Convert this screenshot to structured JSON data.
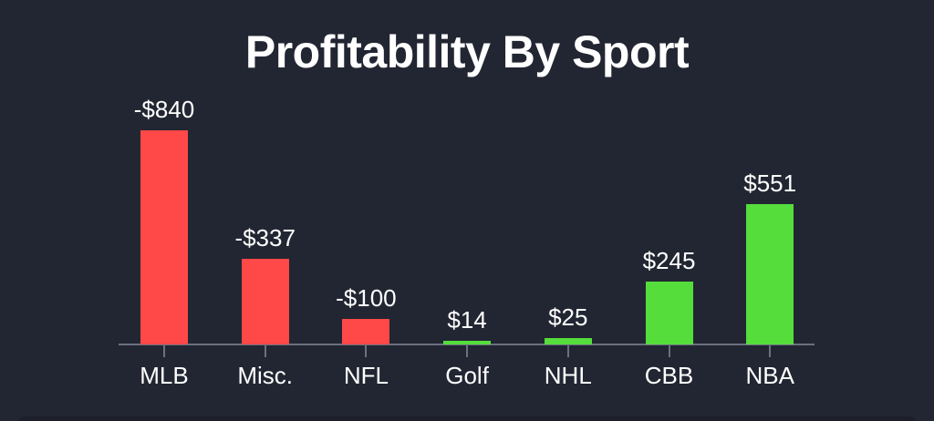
{
  "title": "Profitability By Sport",
  "colors": {
    "background": "#222632",
    "negative": "#ff4848",
    "positive": "#55dd3c",
    "axis": "#6b7080",
    "text": "#ffffff"
  },
  "chart_data": {
    "type": "bar",
    "title": "Profitability By Sport",
    "xlabel": "",
    "ylabel": "",
    "categories": [
      "MLB",
      "Misc.",
      "NFL",
      "Golf",
      "NHL",
      "CBB",
      "NBA"
    ],
    "values": [
      -840,
      -337,
      -100,
      14,
      25,
      245,
      551
    ],
    "value_labels": [
      "-$840",
      "-$337",
      "-$100",
      "$14",
      "$25",
      "$245",
      "$551"
    ],
    "bar_colors": [
      "#ff4848",
      "#ff4848",
      "#ff4848",
      "#55dd3c",
      "#55dd3c",
      "#55dd3c",
      "#55dd3c"
    ],
    "bar_height_encoding": "absolute value (magnitude), color indicates sign",
    "grid": false,
    "legend": "none",
    "y_axis_visible": false
  }
}
